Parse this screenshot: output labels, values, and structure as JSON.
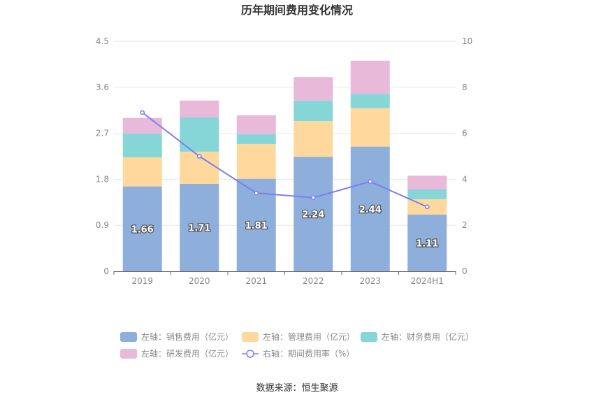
{
  "chart_data": {
    "type": "bar",
    "title": "历年期间费用变化情况",
    "categories": [
      "2019",
      "2020",
      "2021",
      "2022",
      "2023",
      "2024H1"
    ],
    "left_axis": {
      "ticks": [
        "0",
        "0.9",
        "1.8",
        "2.7",
        "3.6",
        "4.5"
      ],
      "ylim": [
        0,
        4.5
      ]
    },
    "right_axis": {
      "ticks": [
        "0",
        "2",
        "4",
        "6",
        "8",
        "10"
      ],
      "ylim": [
        0,
        10
      ]
    },
    "series": [
      {
        "name": "左轴：销售费用（亿元）",
        "axis": "left",
        "type": "stacked-bar",
        "color": "#8eaedc",
        "values": [
          1.66,
          1.71,
          1.81,
          2.24,
          2.44,
          1.11
        ],
        "show_labels": true
      },
      {
        "name": "左轴：管理费用（亿元）",
        "axis": "left",
        "type": "stacked-bar",
        "color": "#fed89d",
        "values": [
          0.57,
          0.63,
          0.68,
          0.7,
          0.75,
          0.3
        ]
      },
      {
        "name": "左轴：财务费用（亿元）",
        "axis": "left",
        "type": "stacked-bar",
        "color": "#86d6d8",
        "values": [
          0.46,
          0.67,
          0.19,
          0.4,
          0.28,
          0.19
        ]
      },
      {
        "name": "左轴：研发费用（亿元）",
        "axis": "left",
        "type": "stacked-bar",
        "color": "#e8b9d9",
        "values": [
          0.31,
          0.33,
          0.37,
          0.46,
          0.65,
          0.27
        ]
      },
      {
        "name": "右轴：期间费用率（%）",
        "axis": "right",
        "type": "line",
        "color": "#7c7ff2",
        "values": [
          6.9,
          5.0,
          3.4,
          3.2,
          3.9,
          2.8
        ]
      }
    ],
    "grid": true,
    "legend_position": "bottom"
  },
  "source_label": "数据来源：恒生聚源"
}
